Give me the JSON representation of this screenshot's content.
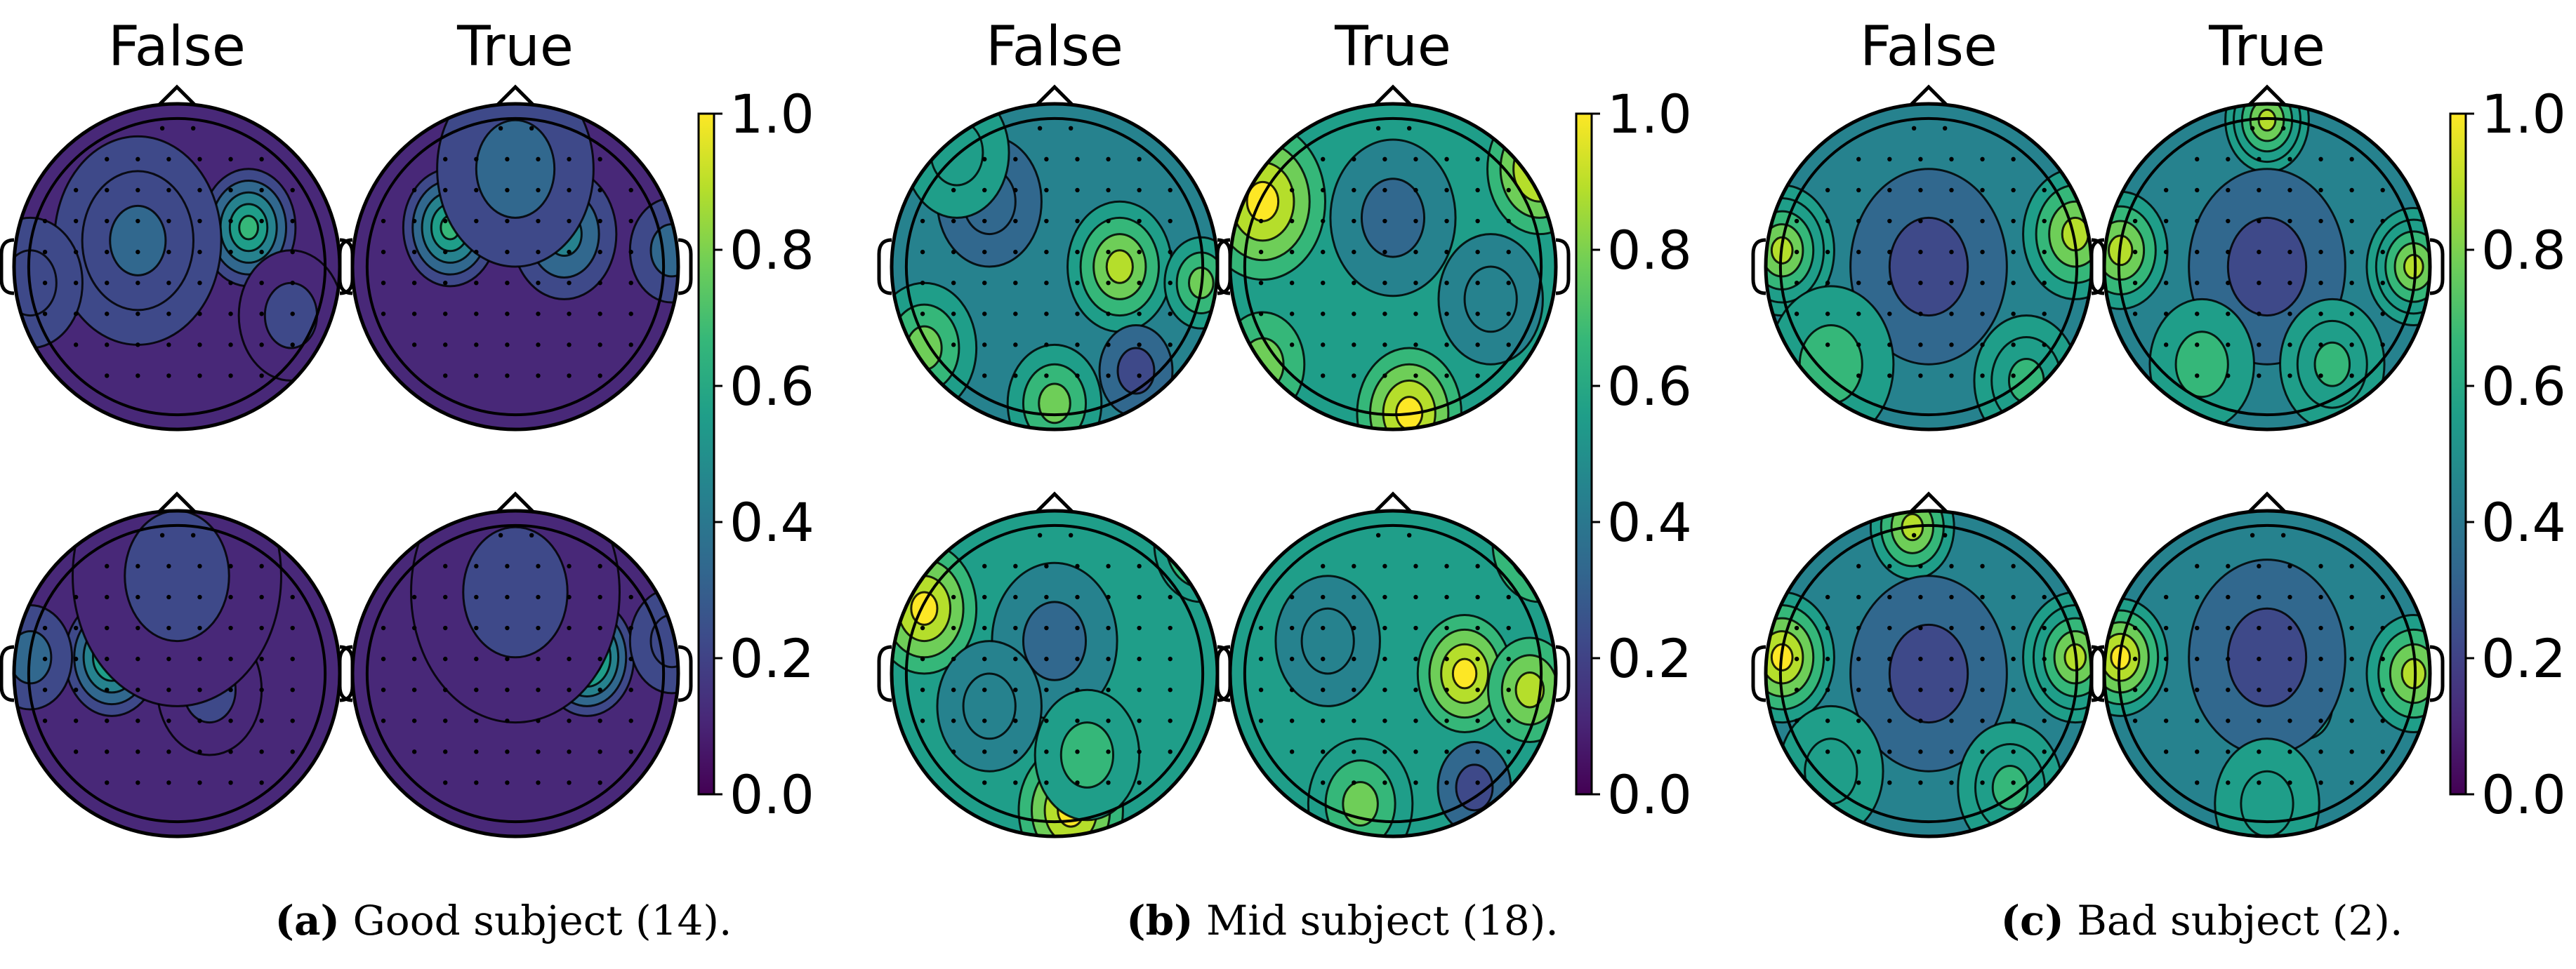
{
  "colors": {
    "viridis": [
      "#440154",
      "#482878",
      "#3e4989",
      "#31688e",
      "#26828e",
      "#1f9e89",
      "#35b779",
      "#6ece58",
      "#b5de2b",
      "#fde725"
    ],
    "outline": "#000000",
    "background": "#ffffff"
  },
  "colorbar": {
    "ticks": [
      "1.0",
      "0.8",
      "0.6",
      "0.4",
      "0.2",
      "0.0"
    ],
    "range": [
      0.0,
      1.0
    ]
  },
  "panels": [
    {
      "column_labels": [
        "False",
        "True"
      ],
      "caption_tag": "(a)",
      "caption_text": "Good subject (14).",
      "maps": [
        {
          "base": 0.08,
          "blobs": [
            [
              0.72,
              0.38,
              0.6,
              0.09
            ],
            [
              0.38,
              0.42,
              0.28,
              0.16
            ],
            [
              0.05,
              0.55,
              0.18,
              0.1
            ],
            [
              0.85,
              0.65,
              0.12,
              0.1
            ]
          ]
        },
        {
          "base": 0.1,
          "blobs": [
            [
              0.3,
              0.38,
              0.55,
              0.09
            ],
            [
              0.65,
              0.4,
              0.3,
              0.1
            ],
            [
              0.5,
              0.2,
              0.2,
              0.15
            ],
            [
              0.98,
              0.45,
              0.2,
              0.08
            ]
          ]
        },
        {
          "base": 0.08,
          "blobs": [
            [
              0.3,
              0.45,
              0.6,
              0.09
            ],
            [
              0.05,
              0.45,
              0.2,
              0.08
            ],
            [
              0.6,
              0.55,
              0.1,
              0.1
            ],
            [
              0.5,
              0.2,
              0.1,
              0.2
            ]
          ]
        },
        {
          "base": 0.1,
          "blobs": [
            [
              0.72,
              0.45,
              0.65,
              0.09
            ],
            [
              0.5,
              0.25,
              0.08,
              0.2
            ],
            [
              0.98,
              0.4,
              0.15,
              0.08
            ]
          ]
        }
      ]
    },
    {
      "column_labels": [
        "False",
        "True"
      ],
      "caption_tag": "(b)",
      "caption_text": "Mid subject (18).",
      "maps": [
        {
          "base": 0.45,
          "blobs": [
            [
              0.7,
              0.5,
              0.4,
              0.1
            ],
            [
              0.95,
              0.55,
              0.35,
              0.07
            ],
            [
              0.5,
              0.92,
              0.35,
              0.09
            ],
            [
              0.1,
              0.75,
              0.3,
              0.1
            ],
            [
              0.3,
              0.3,
              -0.15,
              0.1
            ],
            [
              0.75,
              0.82,
              -0.2,
              0.07
            ],
            [
              0.2,
              0.15,
              0.1,
              0.1
            ]
          ]
        },
        {
          "base": 0.5,
          "blobs": [
            [
              0.1,
              0.3,
              0.45,
              0.12
            ],
            [
              0.95,
              0.2,
              0.45,
              0.1
            ],
            [
              0.55,
              0.95,
              0.45,
              0.1
            ],
            [
              0.5,
              0.35,
              -0.2,
              0.12
            ],
            [
              0.8,
              0.6,
              -0.1,
              0.1
            ],
            [
              0.1,
              0.8,
              0.25,
              0.08
            ]
          ]
        },
        {
          "base": 0.5,
          "blobs": [
            [
              0.1,
              0.3,
              0.45,
              0.1
            ],
            [
              0.95,
              0.1,
              0.4,
              0.09
            ],
            [
              0.55,
              0.92,
              0.45,
              0.1
            ],
            [
              0.5,
              0.4,
              -0.15,
              0.12
            ],
            [
              0.3,
              0.6,
              -0.1,
              0.1
            ],
            [
              0.6,
              0.75,
              0.2,
              0.1
            ]
          ]
        },
        {
          "base": 0.5,
          "blobs": [
            [
              0.72,
              0.5,
              0.45,
              0.09
            ],
            [
              0.92,
              0.55,
              0.35,
              0.08
            ],
            [
              0.4,
              0.9,
              0.3,
              0.1
            ],
            [
              0.75,
              0.85,
              -0.25,
              0.07
            ],
            [
              0.3,
              0.4,
              -0.1,
              0.1
            ],
            [
              0.95,
              0.1,
              0.35,
              0.09
            ]
          ]
        }
      ]
    },
    {
      "column_labels": [
        "False",
        "True"
      ],
      "caption_tag": "(c)",
      "caption_text": "Bad subject (2).",
      "maps": [
        {
          "base": 0.4,
          "blobs": [
            [
              0.05,
              0.45,
              0.5,
              0.1
            ],
            [
              0.95,
              0.4,
              0.45,
              0.1
            ],
            [
              0.62,
              0.6,
              0.5,
              0.05
            ],
            [
              0.5,
              0.5,
              -0.15,
              0.15
            ],
            [
              0.2,
              0.8,
              0.25,
              0.12
            ],
            [
              0.8,
              0.85,
              0.3,
              0.1
            ]
          ]
        },
        {
          "base": 0.4,
          "blobs": [
            [
              0.05,
              0.45,
              0.45,
              0.09
            ],
            [
              0.95,
              0.5,
              0.5,
              0.09
            ],
            [
              0.5,
              0.05,
              0.5,
              0.08
            ],
            [
              0.5,
              0.5,
              -0.15,
              0.15
            ],
            [
              0.7,
              0.8,
              0.3,
              0.1
            ],
            [
              0.3,
              0.8,
              0.25,
              0.1
            ]
          ]
        },
        {
          "base": 0.4,
          "blobs": [
            [
              0.05,
              0.45,
              0.55,
              0.1
            ],
            [
              0.95,
              0.45,
              0.5,
              0.1
            ],
            [
              0.45,
              0.05,
              0.45,
              0.08
            ],
            [
              0.5,
              0.5,
              -0.15,
              0.15
            ],
            [
              0.75,
              0.85,
              0.3,
              0.1
            ],
            [
              0.2,
              0.8,
              0.2,
              0.1
            ]
          ]
        },
        {
          "base": 0.4,
          "blobs": [
            [
              0.05,
              0.45,
              0.55,
              0.09
            ],
            [
              0.95,
              0.5,
              0.45,
              0.09
            ],
            [
              0.62,
              0.6,
              0.5,
              0.05
            ],
            [
              0.5,
              0.45,
              -0.15,
              0.15
            ],
            [
              0.5,
              0.9,
              0.2,
              0.1
            ]
          ]
        }
      ]
    }
  ]
}
